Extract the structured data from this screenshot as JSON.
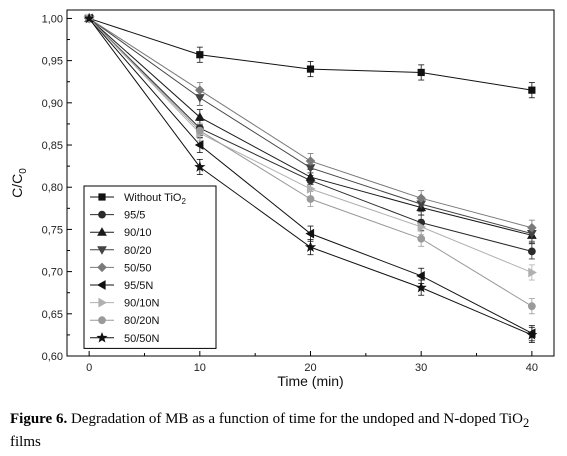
{
  "chart_data": {
    "type": "line",
    "title": "",
    "xlabel": "Time (min)",
    "ylabel": "C/C",
    "ylabel_subscript": "0",
    "xlim": [
      -2,
      42
    ],
    "ylim": [
      0.6,
      1.01
    ],
    "x_ticks": [
      "0",
      "10",
      "20",
      "30",
      "40"
    ],
    "y_ticks": [
      "0,60",
      "0,65",
      "0,70",
      "0,75",
      "0,80",
      "0,85",
      "0,90",
      "0,95",
      "1,00"
    ],
    "legend_position": "bottom-left",
    "x": [
      0,
      10,
      20,
      30,
      40
    ],
    "series": [
      {
        "name": "Without TiO",
        "name_sub": "2",
        "marker": "square",
        "color": "#111111",
        "values": [
          1.0,
          0.957,
          0.94,
          0.936,
          0.915
        ]
      },
      {
        "name": "95/5",
        "marker": "circle",
        "color": "#2b2b2b",
        "values": [
          1.0,
          0.87,
          0.808,
          0.758,
          0.724
        ]
      },
      {
        "name": "90/10",
        "marker": "triangle-up",
        "color": "#1a1a1a",
        "values": [
          1.0,
          0.883,
          0.812,
          0.776,
          0.743
        ]
      },
      {
        "name": "80/20",
        "marker": "triangle-down",
        "color": "#444444",
        "values": [
          1.0,
          0.906,
          0.823,
          0.78,
          0.745
        ]
      },
      {
        "name": "50/50",
        "marker": "diamond",
        "color": "#7a7a7a",
        "values": [
          1.0,
          0.915,
          0.831,
          0.787,
          0.752
        ]
      },
      {
        "name": "95/5N",
        "marker": "triangle-left",
        "color": "#111111",
        "values": [
          1.0,
          0.85,
          0.745,
          0.695,
          0.627
        ]
      },
      {
        "name": "90/10N",
        "marker": "triangle-right",
        "color": "#b0b0b0",
        "values": [
          1.0,
          0.864,
          0.798,
          0.753,
          0.699
        ]
      },
      {
        "name": "80/20N",
        "marker": "circle",
        "color": "#9a9a9a",
        "values": [
          1.0,
          0.867,
          0.786,
          0.739,
          0.659
        ]
      },
      {
        "name": "50/50N",
        "marker": "star",
        "color": "#111111",
        "values": [
          1.0,
          0.824,
          0.729,
          0.681,
          0.625
        ]
      }
    ],
    "error": 0.009
  },
  "caption": {
    "label": "Figure 6.",
    "text": " Degradation of MB as a function of time for the undoped and N-doped TiO",
    "sub": "2",
    "tail": " films"
  }
}
